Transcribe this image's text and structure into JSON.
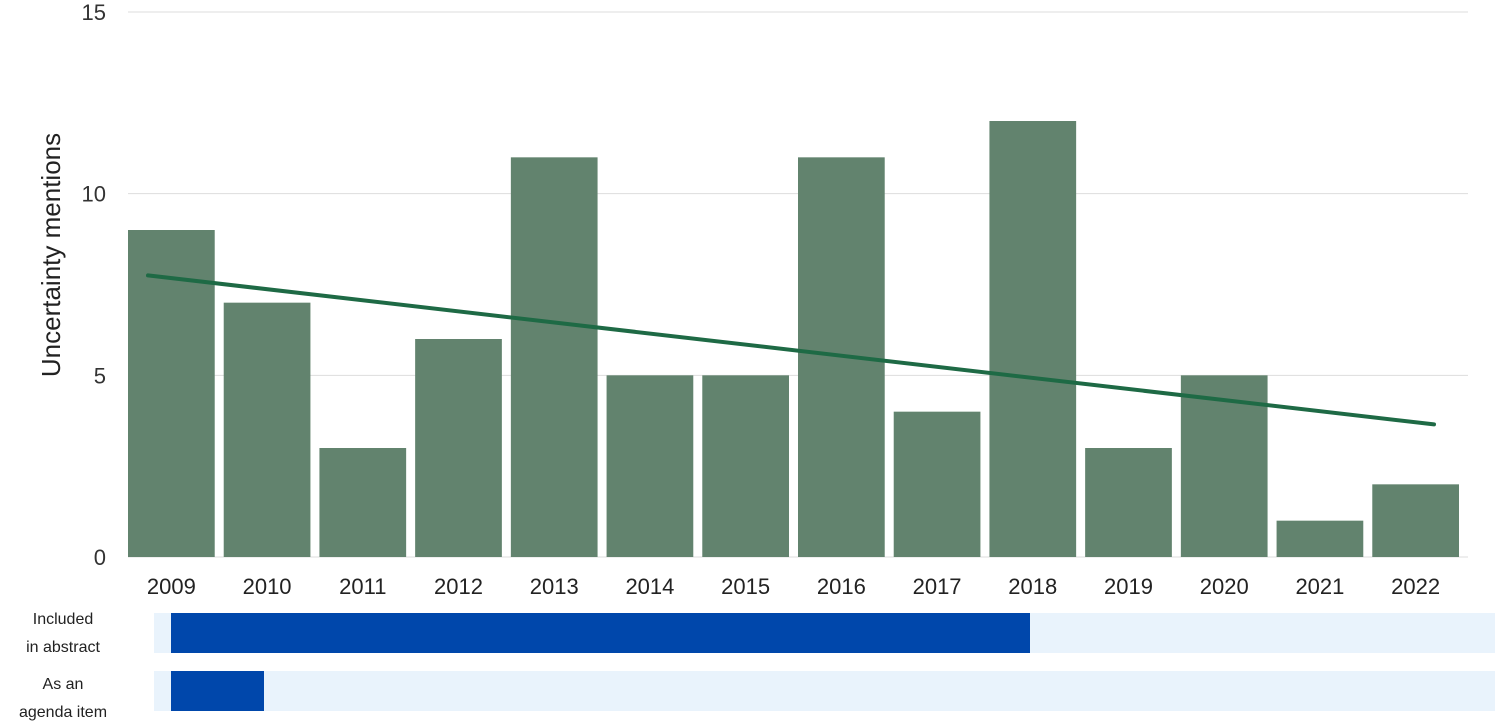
{
  "chart_data": {
    "type": "bar",
    "categories": [
      "2009",
      "2010",
      "2011",
      "2012",
      "2013",
      "2014",
      "2015",
      "2016",
      "2017",
      "2018",
      "2019",
      "2020",
      "2021",
      "2022"
    ],
    "values": [
      9,
      7,
      3,
      6,
      11,
      5,
      5,
      11,
      4,
      12,
      3,
      5,
      1,
      2
    ],
    "trend_line": {
      "start": 7.75,
      "end": 3.65
    },
    "ylabel": "Uncertainty mentions",
    "xlabel": "",
    "ylim": [
      0,
      15
    ],
    "yticks": [
      "0",
      "5",
      "10",
      "15"
    ],
    "grid": true,
    "colors": {
      "bar": "#62836E",
      "trend": "#1E6A45",
      "grid": "#DDDDDD"
    }
  },
  "timeline": [
    {
      "label_line1": "Included",
      "label_line2": "in abstract",
      "start_year": "2009",
      "end_year": "2017",
      "fill_color": "#0047AB",
      "track_color": "#E9F3FC"
    },
    {
      "label_line1": "As an",
      "label_line2": "agenda item",
      "start_year": "2009",
      "end_year": "2009",
      "fill_color": "#0047AB",
      "track_color": "#E9F3FC"
    }
  ]
}
